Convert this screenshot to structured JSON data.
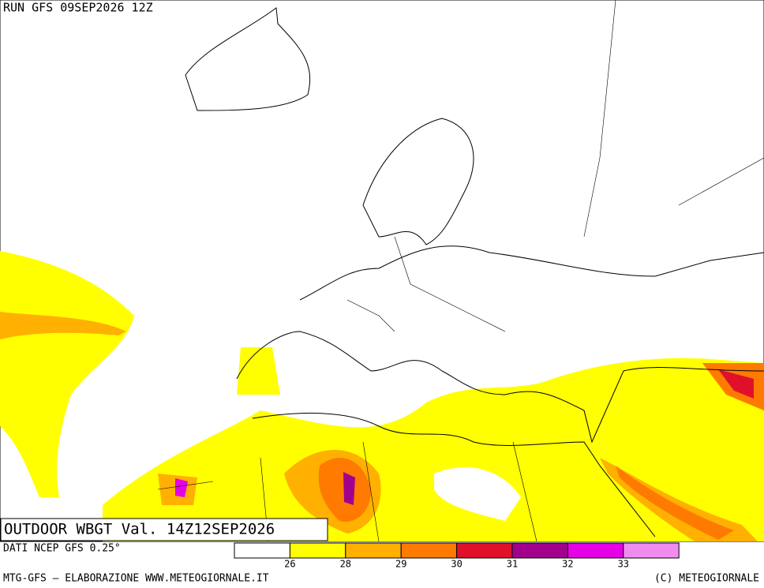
{
  "header": {
    "run": "RUN GFS 09SEP2026 12Z"
  },
  "map": {
    "label": "OUTDOOR WBGT Val. 14Z12SEP2026"
  },
  "legend": {
    "colors": [
      "#ffffff",
      "#ffff00",
      "#ffb000",
      "#ff7a00",
      "#e0102a",
      "#a0008c",
      "#e600e6",
      "#f08cf0"
    ],
    "thresholds": [
      26,
      28,
      29,
      30,
      31,
      32,
      33
    ]
  },
  "footer": {
    "source": "DATI NCEP GFS 0.25°",
    "credit": "MTG-GFS — ELABORAZIONE WWW.METEOGIORNALE.IT",
    "copyright": "(C) METEOGIORNALE"
  }
}
